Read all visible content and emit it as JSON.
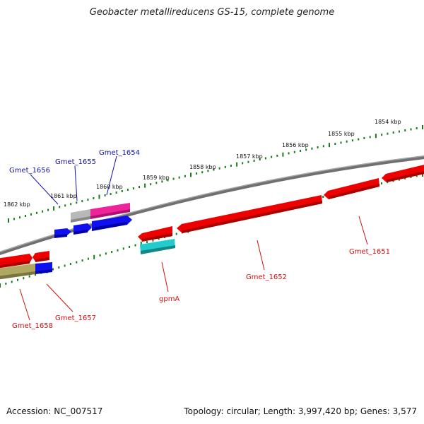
{
  "title": "Geobacter metallireducens GS-15, complete genome",
  "accession": "Accession: NC_007517",
  "topology": "Topology: circular; Length: 3,997,420 bp; Genes: 3,577",
  "colors": {
    "backbone": "#777777",
    "tick": "#1a7a1a",
    "forward_label": "#1111aa",
    "reverse_label": "#cc1111",
    "red": "#ee0000",
    "blue": "#1010ee",
    "magenta": "#ee2299",
    "grey": "#b8b8b8",
    "cyan": "#22cccc",
    "olive": "#b0a860"
  },
  "kbp_labels": [
    "1854 kbp",
    "1855 kbp",
    "1856 kbp",
    "1857 kbp",
    "1858 kbp",
    "1859 kbp",
    "1860 kbp",
    "1861 kbp",
    "1862 kbp"
  ],
  "forward_genes": [
    "Gmet_1656",
    "Gmet_1655",
    "Gmet_1654"
  ],
  "reverse_genes": [
    "Gmet_1658",
    "Gmet_1657",
    "gpmA",
    "Gmet_1652",
    "Gmet_1651"
  ]
}
